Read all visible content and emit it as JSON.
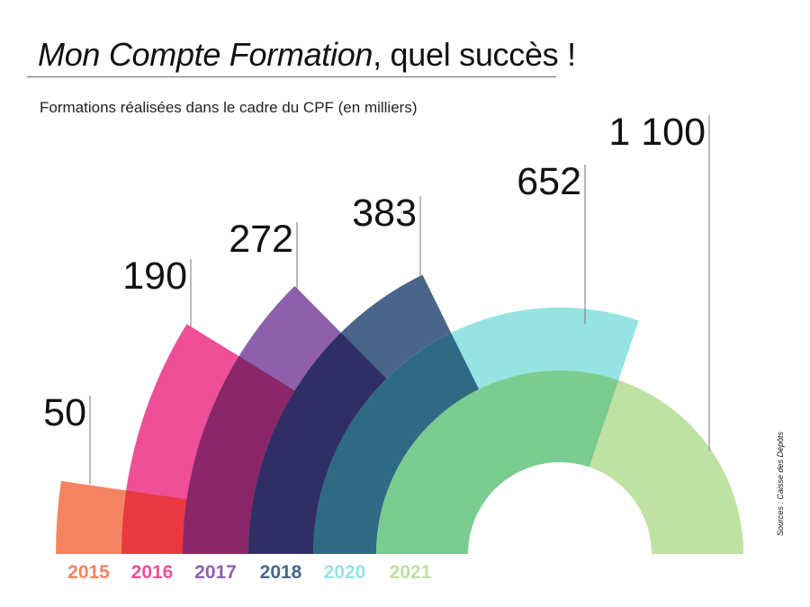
{
  "title": {
    "italic": "Mon Compte Formation",
    "rest": ", quel succès !"
  },
  "source": "Sources : Caisse des Dépôts",
  "colors": {
    "2015": "#f4845f",
    "2016": "#ef4f96",
    "2017": "#8e60ac",
    "2018": "#4a6589",
    "2020": "#95e4e2",
    "2021": "#bfe1a1",
    "overlap_2015_2016": "#e9383f",
    "overlap_2016_2017": "#8b2668",
    "overlap_2017_2018": "#2f2f66",
    "overlap_2018_2020": "#2e6a84",
    "overlap_2020_2021": "#7acc91"
  },
  "chart_data": {
    "type": "bar",
    "title": "",
    "subtitle": "Formations réalisées dans le cadre du CPF (en milliers)",
    "xlabel": "",
    "ylabel": "",
    "categories": [
      "2015",
      "2016",
      "2017",
      "2018",
      "2020",
      "2021"
    ],
    "values": [
      50,
      190,
      272,
      383,
      652,
      1100
    ],
    "value_labels": [
      "50",
      "190",
      "272",
      "383",
      "652",
      "1 100"
    ],
    "ylim": [
      0,
      1100
    ],
    "grid": false,
    "legend": "none"
  }
}
